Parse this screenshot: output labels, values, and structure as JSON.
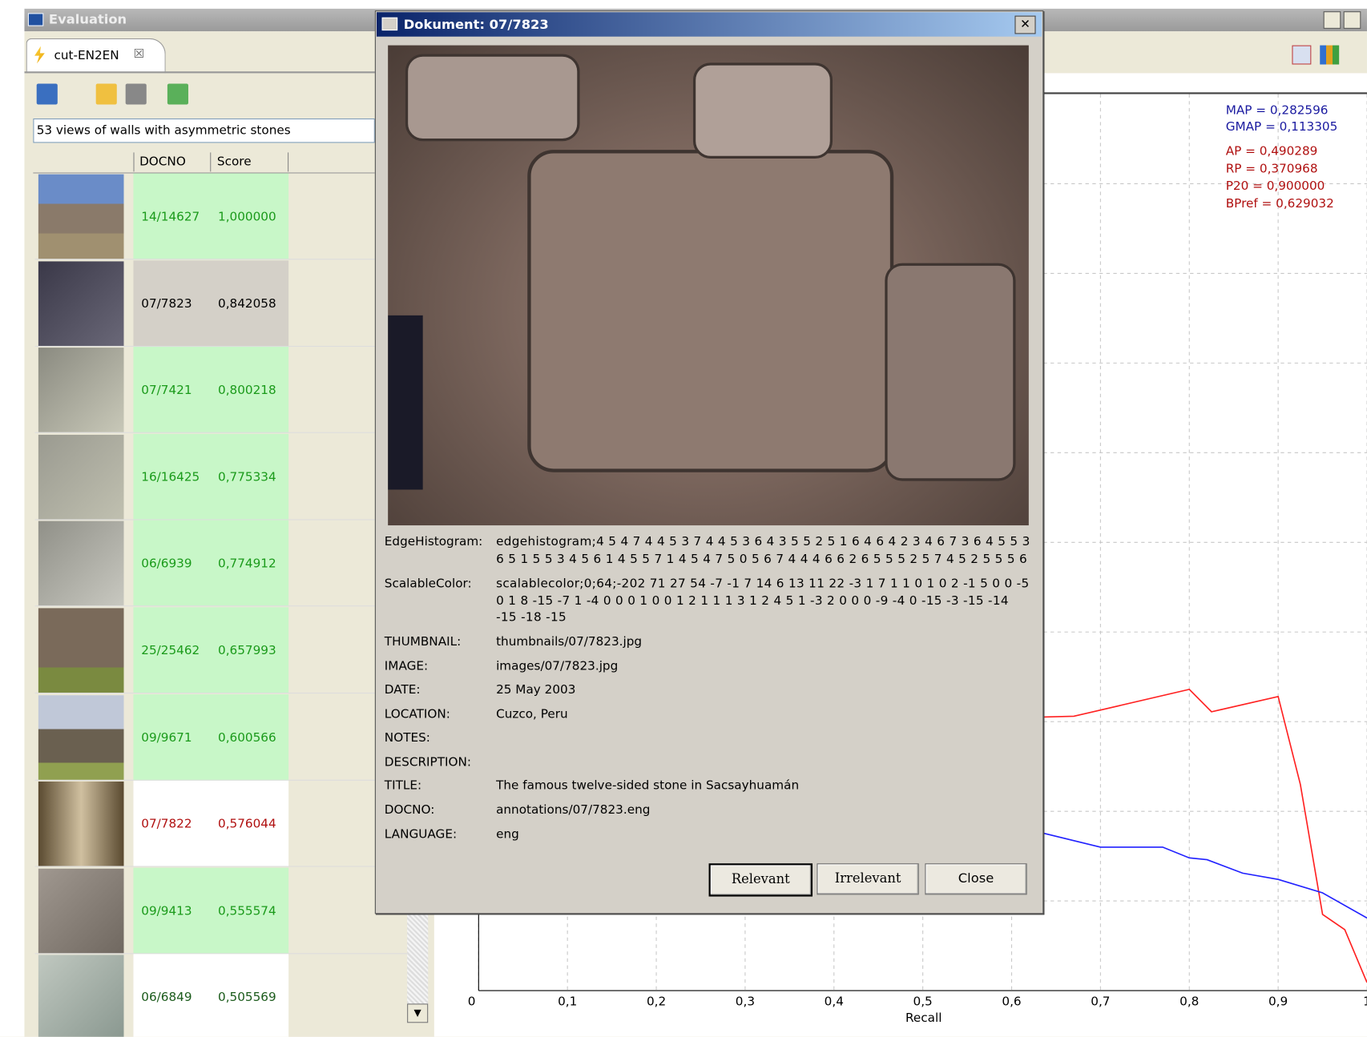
{
  "window": {
    "title": "Evaluation"
  },
  "tab": {
    "label": "cut-EN2EN"
  },
  "query": "53  views of walls with asymmetric stones",
  "table": {
    "headers": [
      "DOCNO",
      "Score"
    ],
    "rows": [
      {
        "docno": "14/14627",
        "score": "1,000000",
        "text_color": "#1a9a1a",
        "background": "#c8f7c8"
      },
      {
        "docno": "07/7823",
        "score": "0,842058",
        "text_color": "#000000",
        "background": "#d4d0c8"
      },
      {
        "docno": "07/7421",
        "score": "0,800218",
        "text_color": "#1a9a1a",
        "background": "#c8f7c8"
      },
      {
        "docno": "16/16425",
        "score": "0,775334",
        "text_color": "#1a9a1a",
        "background": "#c8f7c8"
      },
      {
        "docno": "06/6939",
        "score": "0,774912",
        "text_color": "#1a9a1a",
        "background": "#c8f7c8"
      },
      {
        "docno": "25/25462",
        "score": "0,657993",
        "text_color": "#1a9a1a",
        "background": "#c8f7c8"
      },
      {
        "docno": "09/9671",
        "score": "0,600566",
        "text_color": "#1a9a1a",
        "background": "#c8f7c8"
      },
      {
        "docno": "07/7822",
        "score": "0,576044",
        "text_color": "#b01010",
        "background": "#ffffff"
      },
      {
        "docno": "09/9413",
        "score": "0,555574",
        "text_color": "#1a9a1a",
        "background": "#c8f7c8"
      },
      {
        "docno": "06/6849",
        "score": "0,505569",
        "text_color": "#1a5a1a",
        "background": "#ffffff"
      }
    ]
  },
  "dialog": {
    "title": "Dokument: 07/7823",
    "fields": [
      {
        "label": "EdgeHistogram:",
        "lines": [
          "edgehistogram;4 5 4 7 4 4 5 3 7 4 4 5 3 6 4 3 5 5 2 5 1 6 4 6 4 2 3 4 6 7 3 6 4 5 5 3",
          "6 5 1 5 5 3 4 5 6 1 4 5 5 7 1 4 5 4 7 5 0 5 6 7 4 4 4 6 6 2 6 5 5 5 2 5 7 4 5 2 5 5 5 6"
        ]
      },
      {
        "label": "ScalableColor:",
        "lines": [
          "scalablecolor;0;64;-202 71 27 54 -7 -1 7 14 6 13 11 22 -3 1 7 1 1 0 1 0 2 -1 5 0 0 -5",
          "0 1 8 -15 -7 1 -4 0 0 0 1 0 0 1 2 1 1 1 3 1 2 4 5 1 -3 2 0 0 0 -9 -4 0 -15 -3 -15 -14",
          "-15 -18 -15"
        ]
      },
      {
        "label": "THUMBNAIL:",
        "value": "thumbnails/07/7823.jpg"
      },
      {
        "label": "IMAGE:",
        "value": "images/07/7823.jpg"
      },
      {
        "label": "DATE:",
        "value": "25 May 2003"
      },
      {
        "label": "LOCATION:",
        "value": "Cuzco, Peru"
      },
      {
        "label": "NOTES:"
      },
      {
        "label": "DESCRIPTION:"
      },
      {
        "label": "TITLE:",
        "value": "The famous twelve-sided stone in Sacsayhuamán"
      },
      {
        "label": "DOCNO:",
        "value": "annotations/07/7823.eng"
      },
      {
        "label": "LANGUAGE:",
        "value": "eng"
      }
    ],
    "buttons": [
      "Relevant",
      "Irrelevant",
      "Close"
    ]
  },
  "chart": {
    "type": "line",
    "xlabel": "Recall",
    "xlim": [
      0,
      1
    ],
    "ylim": [
      0,
      1
    ],
    "xticks": [
      0,
      {
        "value": 0.1,
        "label": "0,1"
      },
      {
        "value": 0.2,
        "label": "0,2"
      },
      {
        "value": 0.3,
        "label": "0,3"
      },
      {
        "value": 0.4,
        "label": "0,4"
      },
      {
        "value": 0.5,
        "label": "0,5"
      },
      {
        "value": 0.6,
        "label": "0,6"
      },
      {
        "value": 0.7,
        "label": "0,7"
      },
      {
        "value": 0.8,
        "label": "0,8"
      },
      {
        "value": 0.9,
        "label": "0,9"
      },
      1
    ],
    "yticks": [
      0.1,
      0.2,
      0.3,
      0.4,
      0.5,
      0.6,
      0.7,
      0.8,
      0.9
    ],
    "grid": true,
    "series": [
      {
        "color": "#ff2020",
        "x": [
          0.63,
          0.67,
          0.8,
          0.825,
          0.9,
          0.925,
          0.95,
          0.975,
          1.0
        ],
        "values": [
          0.305,
          0.306,
          0.336,
          0.311,
          0.328,
          0.23,
          0.085,
          0.068,
          0.009
        ]
      },
      {
        "color": "#2020ff",
        "x": [
          0.63,
          0.7,
          0.77,
          0.8,
          0.82,
          0.86,
          0.9,
          0.95,
          1.0
        ],
        "values": [
          0.177,
          0.16,
          0.16,
          0.148,
          0.146,
          0.131,
          0.124,
          0.109,
          0.081
        ]
      }
    ],
    "metrics": [
      {
        "text": "MAP = 0,282596",
        "color": "#1a1aa0"
      },
      {
        "text": "GMAP = 0,113305",
        "color": "#1a1aa0"
      },
      {
        "text": "AP = 0,490289",
        "color": "#b01010"
      },
      {
        "text": "RP = 0,370968",
        "color": "#b01010"
      },
      {
        "text": "P20 = 0,900000",
        "color": "#b01010"
      },
      {
        "text": "BPref = 0,629032",
        "color": "#b01010"
      }
    ]
  }
}
